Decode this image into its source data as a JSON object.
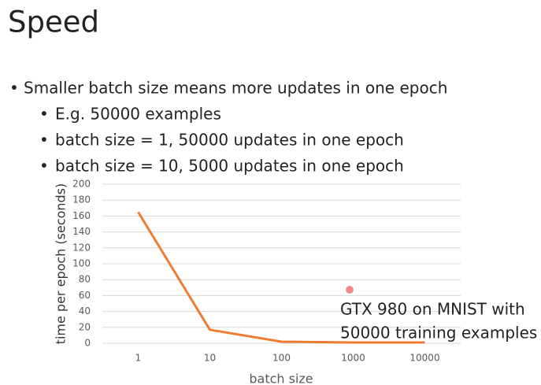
{
  "slide": {
    "title": "Speed",
    "bullets": [
      "Smaller batch size means more updates in one epoch",
      "E.g. 50000 examples",
      "batch size = 1, 50000 updates in one epoch",
      "batch size = 10, 5000 updates in one epoch"
    ]
  },
  "chart_data": {
    "type": "line",
    "categories": [
      "1",
      "10",
      "100",
      "1000",
      "10000"
    ],
    "values": [
      165,
      17,
      2,
      1,
      1
    ],
    "color": "#ed7d31",
    "ylim": [
      0,
      200
    ],
    "yticks": [
      0,
      20,
      40,
      60,
      80,
      100,
      120,
      140,
      160,
      180,
      200
    ],
    "grid": true,
    "xlabel": "batch size",
    "ylabel": "time per epoch (seconds)",
    "annotation": [
      "GTX 980 on MNIST with",
      "50000 training examples"
    ]
  }
}
